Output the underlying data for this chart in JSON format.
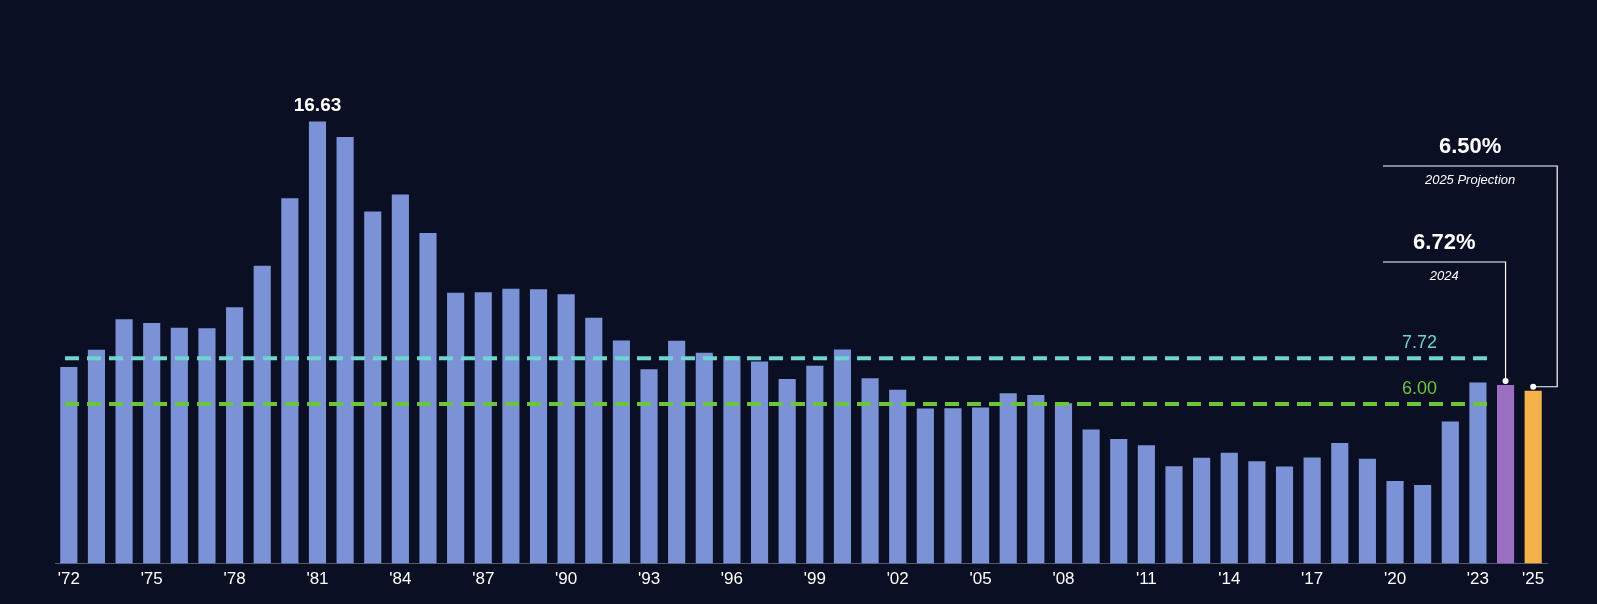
{
  "chart_data": {
    "type": "bar",
    "categories": [
      "'72",
      null,
      null,
      "'75",
      null,
      null,
      "'78",
      null,
      null,
      "'81",
      null,
      null,
      "'84",
      null,
      null,
      "'87",
      null,
      null,
      "'90",
      null,
      null,
      "'93",
      null,
      null,
      "'96",
      null,
      null,
      "'99",
      null,
      null,
      "'02",
      null,
      null,
      "'05",
      null,
      null,
      "'08",
      null,
      null,
      "'11",
      null,
      null,
      "'14",
      null,
      null,
      "'17",
      null,
      null,
      "'20",
      null,
      null,
      "'23",
      null,
      "'25"
    ],
    "values": [
      7.39,
      8.04,
      9.19,
      9.05,
      8.87,
      8.85,
      9.64,
      11.2,
      13.74,
      16.63,
      16.04,
      13.24,
      13.88,
      12.43,
      10.19,
      10.21,
      10.34,
      10.32,
      10.13,
      9.25,
      8.39,
      7.31,
      8.38,
      7.93,
      7.81,
      7.6,
      6.94,
      7.44,
      8.05,
      6.97,
      6.54,
      5.83,
      5.84,
      5.87,
      6.41,
      6.34,
      6.03,
      5.04,
      4.69,
      4.45,
      3.66,
      3.98,
      4.17,
      3.85,
      3.65,
      3.99,
      4.54,
      3.94,
      3.11,
      2.96,
      5.34,
      6.81,
      6.72,
      6.5
    ],
    "colors": [
      "#7b93d6",
      "#7b93d6",
      "#7b93d6",
      "#7b93d6",
      "#7b93d6",
      "#7b93d6",
      "#7b93d6",
      "#7b93d6",
      "#7b93d6",
      "#7b93d6",
      "#7b93d6",
      "#7b93d6",
      "#7b93d6",
      "#7b93d6",
      "#7b93d6",
      "#7b93d6",
      "#7b93d6",
      "#7b93d6",
      "#7b93d6",
      "#7b93d6",
      "#7b93d6",
      "#7b93d6",
      "#7b93d6",
      "#7b93d6",
      "#7b93d6",
      "#7b93d6",
      "#7b93d6",
      "#7b93d6",
      "#7b93d6",
      "#7b93d6",
      "#7b93d6",
      "#7b93d6",
      "#7b93d6",
      "#7b93d6",
      "#7b93d6",
      "#7b93d6",
      "#7b93d6",
      "#7b93d6",
      "#7b93d6",
      "#7b93d6",
      "#7b93d6",
      "#7b93d6",
      "#7b93d6",
      "#7b93d6",
      "#7b93d6",
      "#7b93d6",
      "#7b93d6",
      "#7b93d6",
      "#7b93d6",
      "#7b93d6",
      "#7b93d6",
      "#7b93d6",
      "#9b6fc2",
      "#f5b14a"
    ],
    "value_labels": [
      null,
      null,
      null,
      null,
      null,
      null,
      null,
      null,
      null,
      "16.63",
      null,
      null,
      null,
      null,
      null,
      null,
      null,
      null,
      null,
      null,
      null,
      null,
      null,
      null,
      null,
      null,
      null,
      null,
      null,
      null,
      null,
      null,
      null,
      null,
      null,
      null,
      null,
      null,
      null,
      null,
      null,
      null,
      null,
      null,
      null,
      null,
      null,
      null,
      null,
      null,
      null,
      null,
      "6.72%",
      "6.50%"
    ],
    "annotations": [
      "2025 Projection",
      "2024"
    ],
    "ref_lines": [
      {
        "axis": "y",
        "value": 7.72,
        "label": "7.72",
        "color": "#6fd3d0",
        "line_style": "dashed"
      },
      {
        "axis": "y",
        "value": 6.0,
        "label": "6.00",
        "color": "#6ac43c",
        "line_style": "dashed"
      }
    ],
    "tick_labels": "x",
    "legend": false
  }
}
